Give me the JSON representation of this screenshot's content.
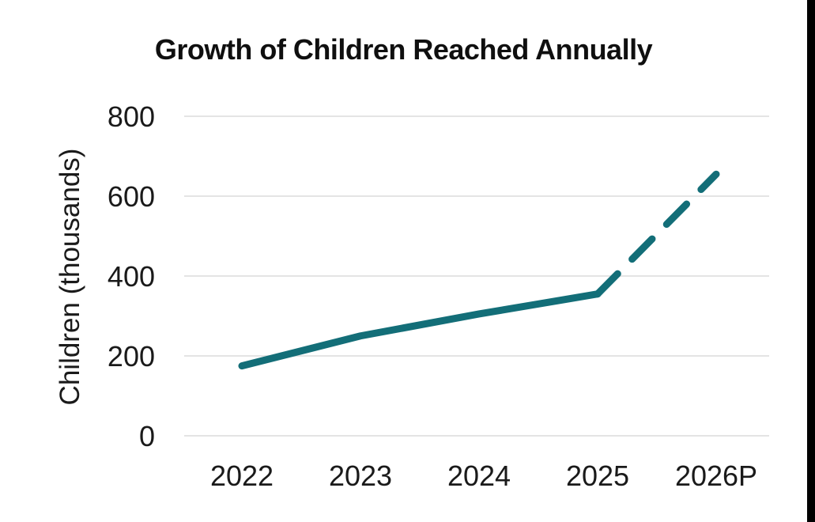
{
  "chart_data": {
    "type": "line",
    "title": "Growth of Children Reached Annually",
    "xlabel": "",
    "ylabel": "Children (thousands)",
    "categories": [
      "2022",
      "2023",
      "2024",
      "2025",
      "2026P"
    ],
    "y_ticks": [
      0,
      200,
      400,
      600,
      800
    ],
    "ylim": [
      0,
      800
    ],
    "grid": true,
    "legend": false,
    "series": [
      {
        "name": "actual",
        "style": "solid",
        "x": [
          "2022",
          "2023",
          "2024",
          "2025"
        ],
        "values": [
          175,
          250,
          305,
          355
        ]
      },
      {
        "name": "projected",
        "style": "dashed",
        "x": [
          "2025",
          "2026P"
        ],
        "values": [
          355,
          655
        ]
      }
    ],
    "colors": {
      "line": "#136e78",
      "grid": "#e4e4e4",
      "text": "#1a1a1a"
    }
  },
  "decor": {
    "right_edge_bar_color": "#000000"
  }
}
